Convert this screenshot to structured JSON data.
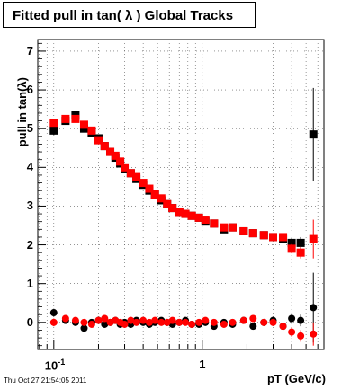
{
  "title": "Fitted pull in tan( λ )  Global Tracks",
  "timestamp": "Thu Oct 27 21:54:05 2011",
  "chart_data": {
    "type": "scatter",
    "title": "Fitted pull in tan( λ )  Global Tracks",
    "xlabel": "pT (GeV/c)",
    "ylabel": "pull in tan(λ)",
    "x_scale": "log",
    "xlim": [
      0.078,
      6.6
    ],
    "ylim": [
      -0.7,
      7.3
    ],
    "grid": true,
    "y_tick_labels": [
      "0",
      "1",
      "2",
      "3",
      "4",
      "5",
      "6",
      "7"
    ],
    "x_tick_labels": [
      {
        "value": 0.1,
        "base": "10",
        "exp": "-1"
      },
      {
        "value": 1,
        "base": "1",
        "exp": ""
      }
    ],
    "series": [
      {
        "color": "#000000",
        "marker": "square",
        "x": [
          0.1,
          0.12,
          0.14,
          0.16,
          0.18,
          0.2,
          0.22,
          0.24,
          0.26,
          0.28,
          0.3,
          0.33,
          0.36,
          0.4,
          0.44,
          0.48,
          0.53,
          0.58,
          0.63,
          0.7,
          0.77,
          0.85,
          0.95,
          1.05,
          1.2,
          1.4,
          1.6,
          1.9,
          2.2,
          2.6,
          3.0,
          3.5,
          4.0,
          4.6,
          5.6
        ],
        "y": [
          4.95,
          5.2,
          5.35,
          5.0,
          4.9,
          4.75,
          4.55,
          4.4,
          4.25,
          4.1,
          3.95,
          3.85,
          3.7,
          3.55,
          3.4,
          3.3,
          3.15,
          3.05,
          2.95,
          2.85,
          2.8,
          2.75,
          2.7,
          2.6,
          2.55,
          2.4,
          2.45,
          2.35,
          2.3,
          2.25,
          2.2,
          2.15,
          2.05,
          2.05,
          4.85
        ],
        "yerr": [
          0.12,
          0.08,
          0.06,
          0.05,
          0.05,
          0.04,
          0.04,
          0.04,
          0.04,
          0.04,
          0.04,
          0.04,
          0.04,
          0.04,
          0.04,
          0.04,
          0.04,
          0.04,
          0.04,
          0.04,
          0.04,
          0.05,
          0.05,
          0.05,
          0.05,
          0.06,
          0.06,
          0.07,
          0.08,
          0.08,
          0.09,
          0.1,
          0.12,
          0.15,
          1.2
        ]
      },
      {
        "color": "#ff0000",
        "marker": "square",
        "x": [
          0.1,
          0.12,
          0.14,
          0.16,
          0.18,
          0.2,
          0.22,
          0.24,
          0.26,
          0.28,
          0.3,
          0.33,
          0.36,
          0.4,
          0.44,
          0.48,
          0.53,
          0.58,
          0.63,
          0.7,
          0.77,
          0.85,
          0.95,
          1.05,
          1.2,
          1.4,
          1.6,
          1.9,
          2.2,
          2.6,
          3.0,
          3.5,
          4.0,
          4.6,
          5.6
        ],
        "y": [
          5.15,
          5.25,
          5.25,
          5.1,
          4.95,
          4.7,
          4.55,
          4.4,
          4.3,
          4.15,
          4.0,
          3.85,
          3.75,
          3.6,
          3.45,
          3.3,
          3.2,
          3.05,
          2.95,
          2.85,
          2.8,
          2.75,
          2.7,
          2.65,
          2.55,
          2.45,
          2.45,
          2.35,
          2.3,
          2.25,
          2.2,
          2.2,
          1.9,
          1.8,
          2.15
        ],
        "yerr": [
          0.1,
          0.07,
          0.06,
          0.05,
          0.05,
          0.04,
          0.04,
          0.04,
          0.04,
          0.04,
          0.04,
          0.04,
          0.04,
          0.04,
          0.04,
          0.04,
          0.04,
          0.04,
          0.04,
          0.04,
          0.04,
          0.05,
          0.05,
          0.05,
          0.05,
          0.06,
          0.06,
          0.07,
          0.08,
          0.08,
          0.09,
          0.1,
          0.12,
          0.15,
          0.5
        ]
      },
      {
        "color": "#000000",
        "marker": "circle",
        "x": [
          0.1,
          0.12,
          0.14,
          0.16,
          0.18,
          0.2,
          0.22,
          0.24,
          0.26,
          0.28,
          0.3,
          0.33,
          0.36,
          0.4,
          0.44,
          0.48,
          0.53,
          0.58,
          0.63,
          0.7,
          0.77,
          0.85,
          0.95,
          1.05,
          1.2,
          1.4,
          1.6,
          1.9,
          2.2,
          2.6,
          3.0,
          3.5,
          4.0,
          4.6,
          5.6
        ],
        "y": [
          0.25,
          0.05,
          0.0,
          -0.15,
          0.0,
          0.05,
          -0.05,
          0.0,
          0.05,
          -0.05,
          0.0,
          -0.05,
          0.05,
          0.0,
          -0.05,
          0.0,
          0.05,
          0.0,
          -0.05,
          0.0,
          0.05,
          -0.05,
          -0.05,
          0.0,
          -0.1,
          0.0,
          -0.05,
          0.05,
          -0.1,
          0.0,
          0.05,
          -0.1,
          0.1,
          0.05,
          0.38
        ],
        "yerr": [
          0.1,
          0.08,
          0.06,
          0.05,
          0.05,
          0.04,
          0.04,
          0.04,
          0.04,
          0.04,
          0.04,
          0.04,
          0.04,
          0.04,
          0.04,
          0.04,
          0.04,
          0.04,
          0.04,
          0.04,
          0.04,
          0.05,
          0.05,
          0.05,
          0.05,
          0.06,
          0.06,
          0.07,
          0.08,
          0.08,
          0.09,
          0.1,
          0.12,
          0.15,
          0.9
        ]
      },
      {
        "color": "#ff0000",
        "marker": "circle",
        "x": [
          0.1,
          0.12,
          0.14,
          0.16,
          0.18,
          0.2,
          0.22,
          0.24,
          0.26,
          0.28,
          0.3,
          0.33,
          0.36,
          0.4,
          0.44,
          0.48,
          0.53,
          0.58,
          0.63,
          0.7,
          0.77,
          0.85,
          0.95,
          1.05,
          1.2,
          1.4,
          1.6,
          1.9,
          2.2,
          2.6,
          3.0,
          3.5,
          4.0,
          4.6,
          5.6
        ],
        "y": [
          0.0,
          0.1,
          0.05,
          0.0,
          -0.05,
          0.05,
          0.1,
          0.0,
          0.05,
          0.0,
          -0.05,
          0.05,
          0.0,
          0.05,
          0.0,
          0.05,
          0.0,
          0.0,
          0.05,
          0.0,
          0.0,
          -0.05,
          0.0,
          0.05,
          0.0,
          -0.05,
          0.0,
          0.05,
          0.1,
          0.0,
          0.0,
          -0.1,
          -0.25,
          -0.35,
          -0.3
        ],
        "yerr": [
          0.1,
          0.07,
          0.06,
          0.05,
          0.05,
          0.04,
          0.04,
          0.04,
          0.04,
          0.04,
          0.04,
          0.04,
          0.04,
          0.04,
          0.04,
          0.04,
          0.04,
          0.04,
          0.04,
          0.04,
          0.04,
          0.05,
          0.05,
          0.05,
          0.05,
          0.06,
          0.06,
          0.07,
          0.08,
          0.08,
          0.09,
          0.1,
          0.12,
          0.15,
          0.3
        ]
      }
    ]
  }
}
